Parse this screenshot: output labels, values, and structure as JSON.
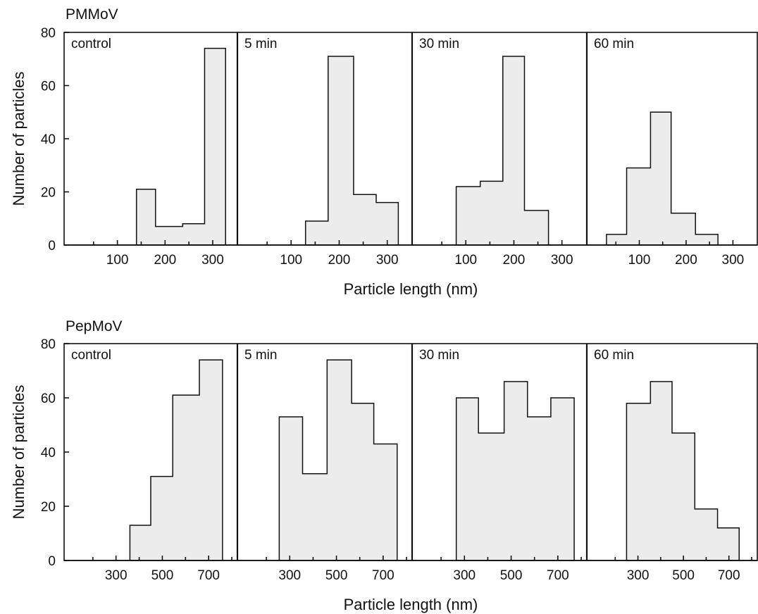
{
  "colors": {
    "line": "#111111",
    "fill": "#ececec",
    "background": "#ffffff"
  },
  "chart_data": [
    {
      "type": "bar",
      "group": "PMMoV",
      "title": "PMMoV",
      "ylabel": "Number of particles",
      "xlabel": "Particle length (nm)",
      "ylim": [
        0,
        80
      ],
      "yticks": [
        0,
        20,
        40,
        60,
        80
      ],
      "xticks": [
        100,
        200,
        300
      ],
      "panels": [
        {
          "label": "control",
          "xlim": [
            0,
            340
          ],
          "bins": [
            {
              "x0": 140,
              "x1": 180,
              "value": 21
            },
            {
              "x0": 180,
              "x1": 237,
              "value": 7
            },
            {
              "x0": 237,
              "x1": 283,
              "value": 8
            },
            {
              "x0": 283,
              "x1": 327,
              "value": 74
            }
          ]
        },
        {
          "label": "5 min",
          "xlim": [
            0,
            340
          ],
          "bins": [
            {
              "x0": 130,
              "x1": 177,
              "value": 9
            },
            {
              "x0": 177,
              "x1": 230,
              "value": 71
            },
            {
              "x0": 230,
              "x1": 277,
              "value": 19
            },
            {
              "x0": 277,
              "x1": 323,
              "value": 16
            }
          ]
        },
        {
          "label": "30 min",
          "xlim": [
            0,
            340
          ],
          "bins": [
            {
              "x0": 80,
              "x1": 130,
              "value": 22
            },
            {
              "x0": 130,
              "x1": 177,
              "value": 24
            },
            {
              "x0": 177,
              "x1": 222,
              "value": 71
            },
            {
              "x0": 222,
              "x1": 272,
              "value": 13
            }
          ]
        },
        {
          "label": "60 min",
          "xlim": [
            0,
            340
          ],
          "bins": [
            {
              "x0": 30,
              "x1": 73,
              "value": 4
            },
            {
              "x0": 73,
              "x1": 124,
              "value": 29
            },
            {
              "x0": 124,
              "x1": 168,
              "value": 50
            },
            {
              "x0": 168,
              "x1": 220,
              "value": 12
            },
            {
              "x0": 220,
              "x1": 268,
              "value": 4
            }
          ]
        }
      ]
    },
    {
      "type": "bar",
      "group": "PepMoV",
      "title": "PepMoV",
      "ylabel": "Number of particles",
      "xlabel": "Particle length (nm)",
      "ylim": [
        0,
        80
      ],
      "yticks": [
        0,
        20,
        40,
        60,
        80
      ],
      "xticks": [
        300,
        500,
        700
      ],
      "panels": [
        {
          "label": "control",
          "xlim": [
            100,
            800
          ],
          "bins": [
            {
              "x0": 360,
              "x1": 450,
              "value": 13
            },
            {
              "x0": 450,
              "x1": 545,
              "value": 31
            },
            {
              "x0": 545,
              "x1": 660,
              "value": 61
            },
            {
              "x0": 660,
              "x1": 760,
              "value": 74
            }
          ]
        },
        {
          "label": "5 min",
          "xlim": [
            100,
            800
          ],
          "bins": [
            {
              "x0": 255,
              "x1": 355,
              "value": 53
            },
            {
              "x0": 355,
              "x1": 460,
              "value": 32
            },
            {
              "x0": 460,
              "x1": 565,
              "value": 74
            },
            {
              "x0": 565,
              "x1": 660,
              "value": 58
            },
            {
              "x0": 660,
              "x1": 760,
              "value": 43
            }
          ]
        },
        {
          "label": "30 min",
          "xlim": [
            100,
            800
          ],
          "bins": [
            {
              "x0": 265,
              "x1": 360,
              "value": 60
            },
            {
              "x0": 360,
              "x1": 470,
              "value": 47
            },
            {
              "x0": 470,
              "x1": 570,
              "value": 66
            },
            {
              "x0": 570,
              "x1": 670,
              "value": 53
            },
            {
              "x0": 670,
              "x1": 770,
              "value": 60
            }
          ]
        },
        {
          "label": "60 min",
          "xlim": [
            100,
            800
          ],
          "bins": [
            {
              "x0": 250,
              "x1": 355,
              "value": 58
            },
            {
              "x0": 355,
              "x1": 450,
              "value": 66
            },
            {
              "x0": 450,
              "x1": 550,
              "value": 47
            },
            {
              "x0": 550,
              "x1": 650,
              "value": 19
            },
            {
              "x0": 650,
              "x1": 745,
              "value": 12
            }
          ]
        }
      ]
    }
  ]
}
